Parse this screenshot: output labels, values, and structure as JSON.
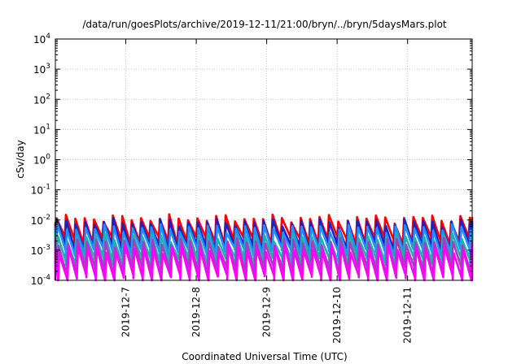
{
  "chart_data": {
    "type": "line",
    "title": "/data/run/goesPlots/archive/2019-12-11/21:00/bryn/../bryn/5daysMars.plot",
    "xlabel": "Coordinated Universal Time (UTC)",
    "ylabel": "cSv/day",
    "y_scale": "log",
    "ylim": [
      0.0001,
      10000
    ],
    "y_ticks": [
      {
        "base": "10",
        "exp": "-4"
      },
      {
        "base": "10",
        "exp": "-3"
      },
      {
        "base": "10",
        "exp": "-2"
      },
      {
        "base": "10",
        "exp": "-1"
      },
      {
        "base": "10",
        "exp": "0"
      },
      {
        "base": "10",
        "exp": "1"
      },
      {
        "base": "10",
        "exp": "2"
      },
      {
        "base": "10",
        "exp": "3"
      },
      {
        "base": "10",
        "exp": "4"
      }
    ],
    "xlim": [
      "2019-12-06 00:00",
      "2019-12-11 22:00"
    ],
    "x_ticks": [
      "2019-12-7",
      "2019-12-8",
      "2019-12-9",
      "2019-12-10",
      "2019-12-11"
    ],
    "grid": true,
    "sawtooth_period_hours": 3.2,
    "series": [
      {
        "color": "#ff0000",
        "peak": 0.0115,
        "floor": 0.0022,
        "phase": 0.0
      },
      {
        "color": "#2020c0",
        "peak": 0.0085,
        "floor": 0.0012,
        "phase": 0.05
      },
      {
        "color": "#2090ff",
        "peak": 0.0055,
        "floor": 0.0009,
        "phase": 0.1
      },
      {
        "color": "#20b0b0",
        "peak": 0.0028,
        "floor": 0.00045,
        "phase": 0.15
      },
      {
        "color": "#a040c0",
        "peak": 0.0019,
        "floor": 0.00022,
        "phase": 0.22
      },
      {
        "color": "#ff00ff",
        "peak": 0.0011,
        "floor": 0.00011,
        "phase": 0.3
      }
    ]
  }
}
